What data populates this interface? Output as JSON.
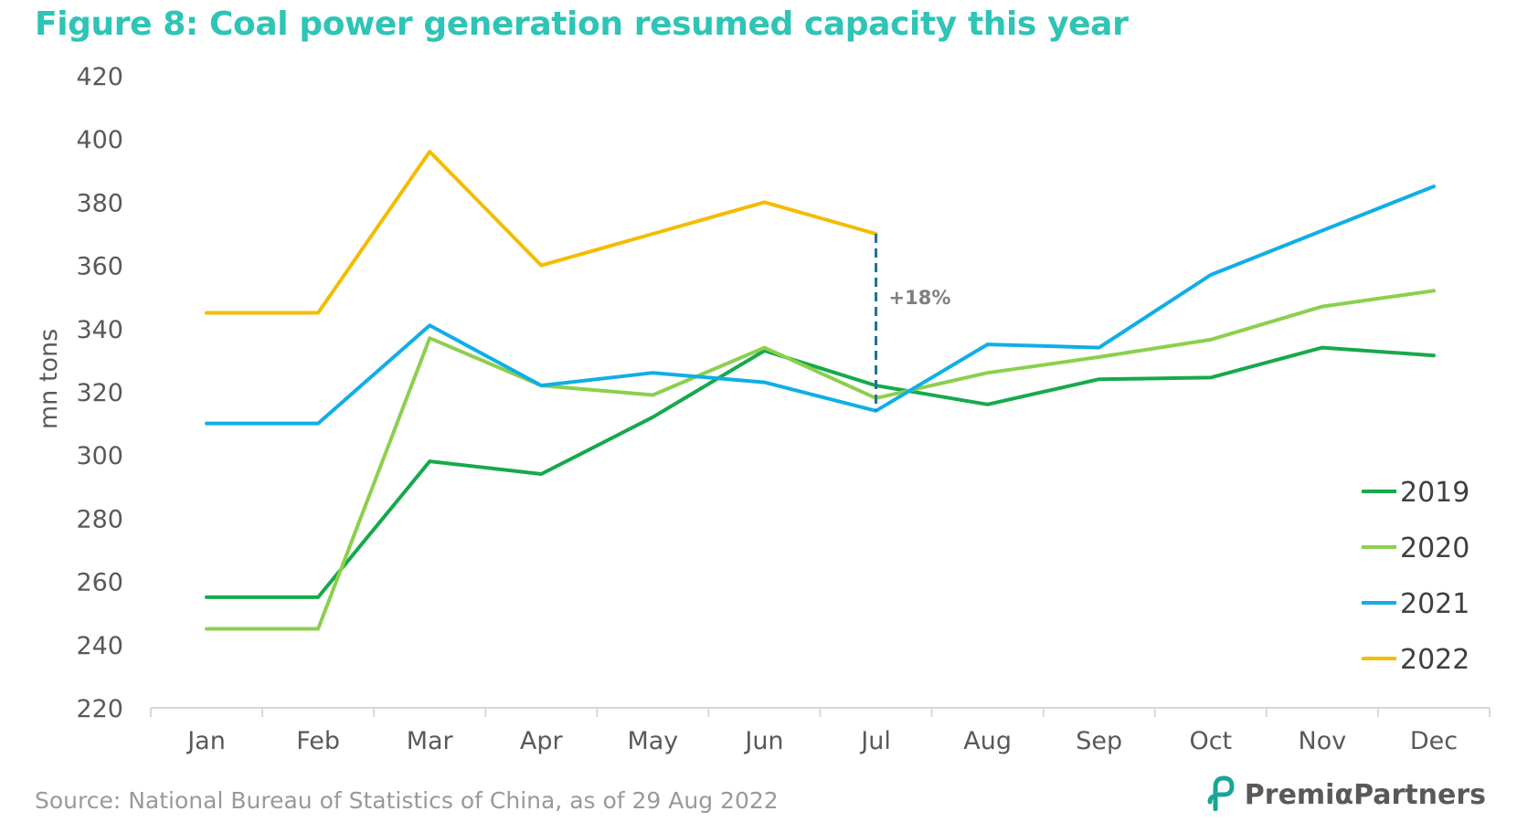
{
  "title": "Figure 8: Coal power generation resumed capacity this year",
  "source": "Source: National Bureau of Statistics of China, as of 29 Aug 2022",
  "brand": {
    "name": "PremiαPartners",
    "logo_icon": "premia-logo-icon"
  },
  "colors": {
    "title": "#2ec4b6",
    "text": "#595959",
    "axis": "#d9d9d9",
    "annotation_line": "#1f6f9f",
    "annotation_text": "#7f7f7f",
    "logo": "#1aa594"
  },
  "chart_data": {
    "type": "line",
    "categories": [
      "Jan",
      "Feb",
      "Mar",
      "Apr",
      "May",
      "Jun",
      "Jul",
      "Aug",
      "Sep",
      "Oct",
      "Nov",
      "Dec"
    ],
    "ylabel": "mn tons",
    "ylim": [
      220,
      420
    ],
    "yticks": [
      220,
      240,
      260,
      280,
      300,
      320,
      340,
      360,
      380,
      400,
      420
    ],
    "grid": false,
    "legend_position": "right",
    "series": [
      {
        "name": "2019",
        "color": "#16a94c",
        "values": [
          255,
          255,
          298,
          294,
          312,
          333,
          322,
          316,
          324,
          324.5,
          334,
          331.5
        ]
      },
      {
        "name": "2020",
        "color": "#8ccf4d",
        "values": [
          245,
          245,
          337,
          322,
          319,
          334,
          318,
          326,
          331,
          336.5,
          347,
          352
        ]
      },
      {
        "name": "2021",
        "color": "#10aee6",
        "values": [
          310,
          310,
          341,
          322,
          326,
          323,
          314,
          335,
          334,
          357,
          371,
          385
        ]
      },
      {
        "name": "2022",
        "color": "#f4bc00",
        "values": [
          345,
          345,
          396,
          360,
          370,
          380,
          370,
          null,
          null,
          null,
          null,
          null
        ]
      }
    ],
    "annotations": [
      {
        "text": "+18%",
        "category": "Jul",
        "from": 370,
        "to": 314
      }
    ]
  }
}
